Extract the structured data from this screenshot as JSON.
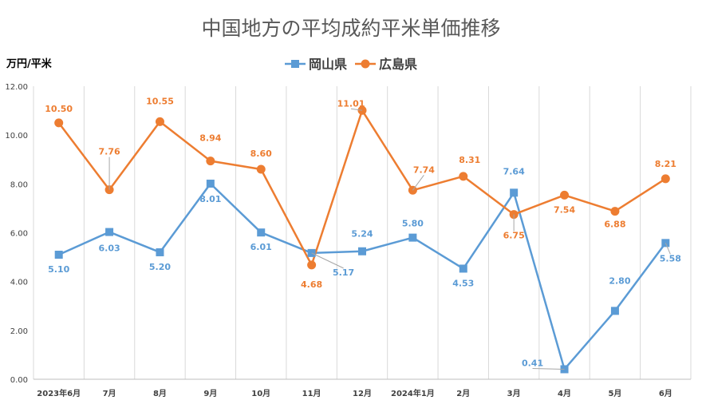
{
  "chart_data": {
    "type": "line",
    "title": "中国地方の平均成約平米単価推移",
    "ylabel": "万円/平米",
    "xlabel": "",
    "categories": [
      "2023年6月",
      "7月",
      "8月",
      "9月",
      "10月",
      "11月",
      "12月",
      "2024年1月",
      "2月",
      "3月",
      "4月",
      "5月",
      "6月"
    ],
    "ylim": [
      0,
      12
    ],
    "yticks": [
      "0.00",
      "2.00",
      "4.00",
      "6.00",
      "8.00",
      "10.00",
      "12.00"
    ],
    "grid": "vertical",
    "legend": "top",
    "series": [
      {
        "name": "岡山県",
        "color": "#5B9BD5",
        "marker": "square",
        "values": [
          5.1,
          6.03,
          5.2,
          8.01,
          6.01,
          5.17,
          5.24,
          5.8,
          4.53,
          7.64,
          0.41,
          2.8,
          5.58
        ],
        "labels": [
          "5.10",
          "6.03",
          "5.20",
          "8.01",
          "6.01",
          "5.17",
          "5.24",
          "5.80",
          "4.53",
          "7.64",
          "0.41",
          "2.80",
          "5.58"
        ]
      },
      {
        "name": "広島県",
        "color": "#ED7D31",
        "marker": "circle",
        "values": [
          10.5,
          7.76,
          10.55,
          8.94,
          8.6,
          4.68,
          11.01,
          7.74,
          8.31,
          6.75,
          7.54,
          6.88,
          8.21
        ],
        "labels": [
          "10.50",
          "7.76",
          "10.55",
          "8.94",
          "8.60",
          "4.68",
          "11.01",
          "7.74",
          "8.31",
          "6.75",
          "7.54",
          "6.88",
          "8.21"
        ]
      }
    ]
  }
}
